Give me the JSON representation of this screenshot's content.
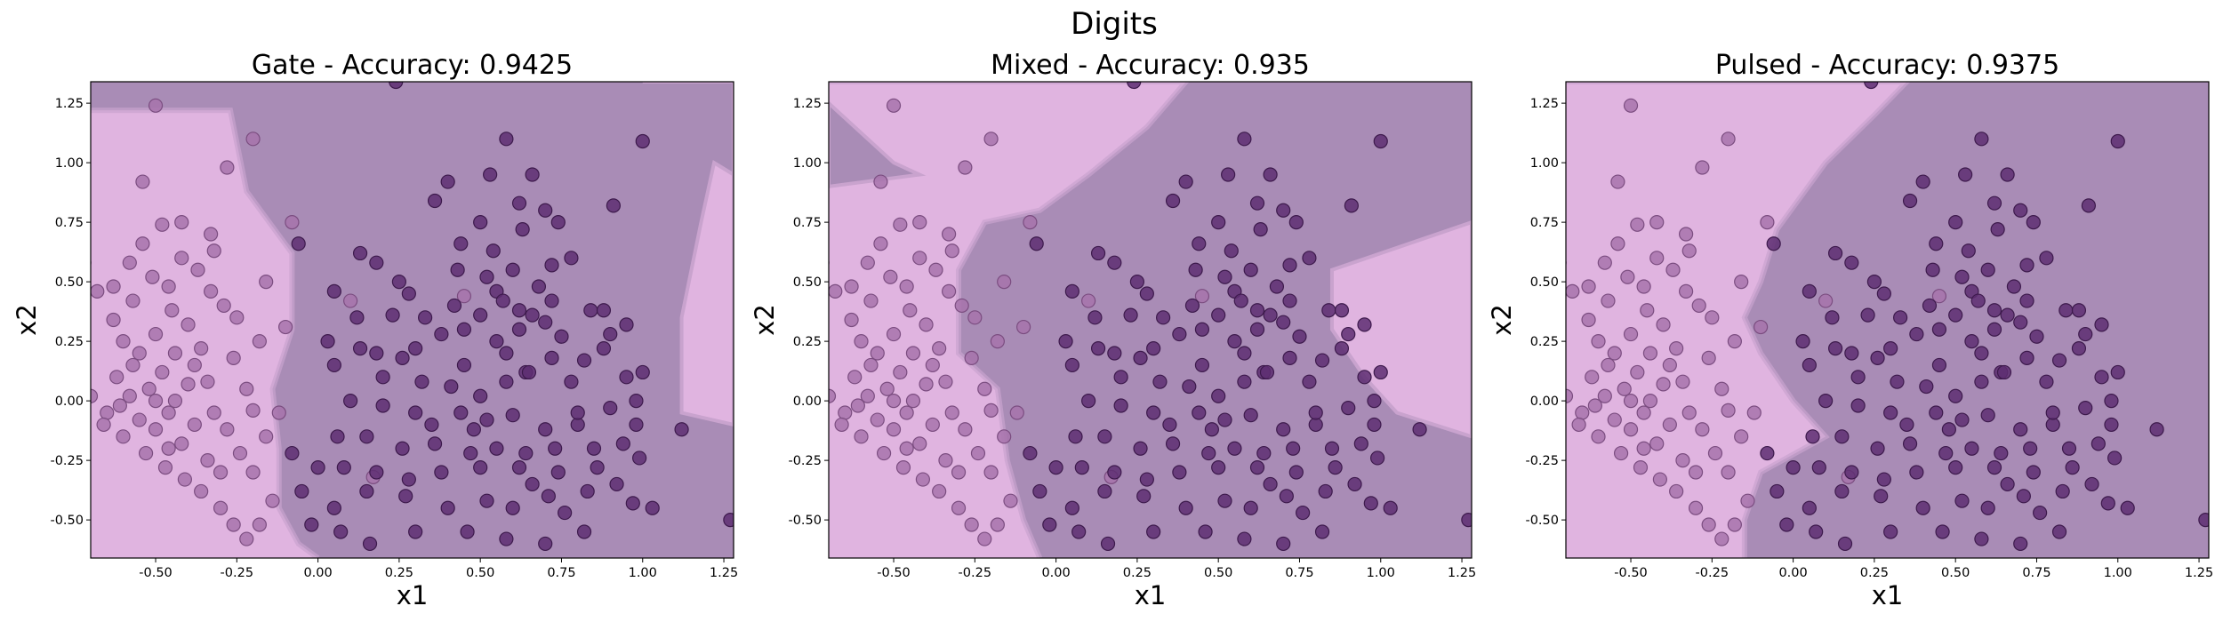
{
  "figure": {
    "title": "Digits"
  },
  "colors": {
    "region_class0": "#e0b4e0",
    "region_class1": "#a98cb6",
    "point_class0": "#a773ab",
    "point_class1": "#5e2e72",
    "point_edge0": "#7b4d80",
    "point_edge1": "#3d1a4c"
  },
  "chart_data": [
    {
      "type": "scatter",
      "title": "Gate - Accuracy: 0.9425",
      "xlabel": "x1",
      "ylabel": "x2",
      "xlim": [
        -0.7,
        1.28
      ],
      "ylim": [
        -0.66,
        1.34
      ],
      "xticks": [
        "-0.50",
        "-0.25",
        "0.00",
        "0.25",
        "0.50",
        "0.75",
        "1.00",
        "1.25"
      ],
      "yticks": [
        "-0.50",
        "-0.25",
        "0.00",
        "0.25",
        "0.50",
        "0.75",
        "1.00",
        "1.25"
      ],
      "decision_boundary": [
        [
          -0.7,
          1.22
        ],
        [
          -0.27,
          1.22
        ],
        [
          -0.22,
          0.88
        ],
        [
          -0.15,
          0.75
        ],
        [
          -0.08,
          0.62
        ],
        [
          -0.08,
          0.3
        ],
        [
          -0.14,
          0.05
        ],
        [
          -0.12,
          -0.2
        ],
        [
          -0.12,
          -0.45
        ],
        [
          -0.06,
          -0.6
        ],
        [
          0.0,
          -0.66
        ]
      ],
      "secondary_region": [
        [
          1.0,
          1.34
        ],
        [
          1.28,
          1.34
        ],
        [
          1.28,
          0.95
        ],
        [
          1.22,
          1.0
        ],
        [
          1.18,
          0.75
        ],
        [
          1.12,
          0.35
        ],
        [
          1.12,
          -0.05
        ],
        [
          1.28,
          -0.1
        ],
        [
          1.28,
          1.34
        ]
      ]
    },
    {
      "type": "scatter",
      "title": "Mixed - Accuracy: 0.935",
      "xlabel": "x1",
      "ylabel": "x2",
      "xlim": [
        -0.7,
        1.28
      ],
      "ylim": [
        -0.66,
        1.34
      ],
      "xticks": [
        "-0.50",
        "-0.25",
        "0.00",
        "0.25",
        "0.50",
        "0.75",
        "1.00",
        "1.25"
      ],
      "yticks": [
        "-0.50",
        "-0.25",
        "0.00",
        "0.25",
        "0.50",
        "0.75",
        "1.00",
        "1.25"
      ],
      "decision_boundary": [
        [
          -0.7,
          1.34
        ],
        [
          0.4,
          1.34
        ],
        [
          0.28,
          1.15
        ],
        [
          0.1,
          0.95
        ],
        [
          -0.05,
          0.8
        ],
        [
          -0.22,
          0.75
        ],
        [
          -0.3,
          0.55
        ],
        [
          -0.3,
          0.2
        ],
        [
          -0.18,
          0.05
        ],
        [
          -0.15,
          -0.25
        ],
        [
          -0.1,
          -0.5
        ],
        [
          -0.05,
          -0.66
        ]
      ],
      "secondary_region": [
        [
          -0.7,
          1.25
        ],
        [
          -0.5,
          1.0
        ],
        [
          -0.42,
          0.95
        ],
        [
          -0.7,
          0.9
        ]
      ],
      "tertiary_region": [
        [
          0.85,
          0.55
        ],
        [
          1.28,
          0.75
        ],
        [
          1.28,
          -0.15
        ],
        [
          1.05,
          -0.05
        ],
        [
          0.95,
          0.1
        ],
        [
          0.85,
          0.3
        ]
      ]
    },
    {
      "type": "scatter",
      "title": "Pulsed - Accuracy: 0.9375",
      "xlabel": "x1",
      "ylabel": "x2",
      "xlim": [
        -0.7,
        1.28
      ],
      "ylim": [
        -0.66,
        1.34
      ],
      "xticks": [
        "-0.50",
        "-0.25",
        "0.00",
        "0.25",
        "0.50",
        "0.75",
        "1.00",
        "1.25"
      ],
      "yticks": [
        "-0.50",
        "-0.25",
        "0.00",
        "0.25",
        "0.50",
        "0.75",
        "1.00",
        "1.25"
      ],
      "decision_boundary": [
        [
          -0.7,
          1.34
        ],
        [
          0.35,
          1.34
        ],
        [
          0.25,
          1.2
        ],
        [
          0.1,
          1.0
        ],
        [
          -0.05,
          0.72
        ],
        [
          -0.1,
          0.5
        ],
        [
          -0.15,
          0.35
        ],
        [
          -0.1,
          0.2
        ],
        [
          0.0,
          0.0
        ],
        [
          0.1,
          -0.15
        ],
        [
          -0.1,
          -0.3
        ],
        [
          -0.15,
          -0.5
        ],
        [
          -0.15,
          -0.66
        ]
      ]
    }
  ],
  "points": {
    "class0": [
      [
        -0.72,
        0.58
      ],
      [
        -0.68,
        0.46
      ],
      [
        -0.63,
        0.34
      ],
      [
        -0.6,
        0.25
      ],
      [
        -0.55,
        0.2
      ],
      [
        -0.5,
        0.28
      ],
      [
        -0.45,
        0.38
      ],
      [
        -0.4,
        0.32
      ],
      [
        -0.36,
        0.22
      ],
      [
        -0.62,
        0.1
      ],
      [
        -0.58,
        0.02
      ],
      [
        -0.52,
        0.05
      ],
      [
        -0.48,
        0.12
      ],
      [
        -0.44,
        0.0
      ],
      [
        -0.4,
        0.07
      ],
      [
        -0.55,
        -0.08
      ],
      [
        -0.5,
        -0.12
      ],
      [
        -0.46,
        -0.05
      ],
      [
        -0.42,
        -0.18
      ],
      [
        -0.38,
        -0.1
      ],
      [
        -0.34,
        -0.25
      ],
      [
        -0.3,
        -0.3
      ],
      [
        -0.6,
        -0.15
      ],
      [
        -0.65,
        -0.05
      ],
      [
        -0.7,
        0.02
      ],
      [
        -0.57,
        0.42
      ],
      [
        -0.51,
        0.52
      ],
      [
        -0.46,
        0.48
      ],
      [
        -0.42,
        0.6
      ],
      [
        -0.37,
        0.55
      ],
      [
        -0.33,
        0.46
      ],
      [
        -0.29,
        0.4
      ],
      [
        -0.25,
        0.35
      ],
      [
        -0.26,
        0.18
      ],
      [
        -0.22,
        0.05
      ],
      [
        -0.2,
        -0.04
      ],
      [
        -0.28,
        -0.12
      ],
      [
        -0.32,
        -0.05
      ],
      [
        -0.36,
        -0.38
      ],
      [
        -0.3,
        -0.45
      ],
      [
        -0.26,
        -0.52
      ],
      [
        -0.22,
        -0.58
      ],
      [
        -0.18,
        -0.52
      ],
      [
        -0.14,
        -0.42
      ],
      [
        -0.2,
        -0.3
      ],
      [
        -0.24,
        -0.22
      ],
      [
        -0.16,
        -0.15
      ],
      [
        -0.12,
        -0.05
      ],
      [
        -0.63,
        0.48
      ],
      [
        -0.58,
        0.58
      ],
      [
        -0.54,
        0.66
      ],
      [
        -0.48,
        0.74
      ],
      [
        -0.42,
        0.75
      ],
      [
        -0.33,
        0.7
      ],
      [
        -0.32,
        0.63
      ],
      [
        -0.5,
        1.24
      ],
      [
        -0.54,
        0.92
      ],
      [
        -0.2,
        1.1
      ],
      [
        -0.28,
        0.98
      ],
      [
        -0.16,
        0.5
      ],
      [
        -0.18,
        0.25
      ],
      [
        -0.1,
        0.31
      ],
      [
        -0.53,
        -0.22
      ],
      [
        -0.47,
        -0.28
      ],
      [
        -0.41,
        -0.33
      ],
      [
        -0.57,
        0.15
      ],
      [
        -0.44,
        0.2
      ],
      [
        0.1,
        0.42
      ],
      [
        0.17,
        -0.32
      ],
      [
        0.45,
        0.44
      ],
      [
        -0.08,
        0.75
      ],
      [
        -0.66,
        -0.1
      ],
      [
        -0.61,
        -0.02
      ],
      [
        -0.38,
        0.15
      ],
      [
        -0.34,
        0.08
      ],
      [
        -0.46,
        -0.2
      ],
      [
        -0.5,
        0.0
      ]
    ],
    "class1": [
      [
        0.24,
        1.34
      ],
      [
        0.58,
        1.1
      ],
      [
        1.0,
        1.09
      ],
      [
        0.4,
        0.92
      ],
      [
        0.66,
        0.95
      ],
      [
        0.53,
        0.95
      ],
      [
        0.36,
        0.84
      ],
      [
        0.62,
        0.83
      ],
      [
        0.7,
        0.8
      ],
      [
        0.74,
        0.75
      ],
      [
        0.91,
        0.82
      ],
      [
        0.5,
        0.75
      ],
      [
        0.63,
        0.72
      ],
      [
        0.44,
        0.66
      ],
      [
        0.54,
        0.63
      ],
      [
        -0.06,
        0.66
      ],
      [
        0.13,
        0.62
      ],
      [
        0.18,
        0.58
      ],
      [
        0.43,
        0.55
      ],
      [
        0.6,
        0.55
      ],
      [
        0.72,
        0.57
      ],
      [
        0.78,
        0.6
      ],
      [
        0.05,
        0.46
      ],
      [
        0.28,
        0.45
      ],
      [
        0.55,
        0.46
      ],
      [
        0.57,
        0.42
      ],
      [
        0.62,
        0.38
      ],
      [
        0.66,
        0.36
      ],
      [
        0.72,
        0.42
      ],
      [
        0.84,
        0.38
      ],
      [
        0.95,
        0.32
      ],
      [
        0.23,
        0.36
      ],
      [
        0.33,
        0.35
      ],
      [
        0.38,
        0.28
      ],
      [
        0.45,
        0.3
      ],
      [
        0.5,
        0.36
      ],
      [
        0.55,
        0.25
      ],
      [
        0.62,
        0.3
      ],
      [
        0.7,
        0.33
      ],
      [
        0.75,
        0.27
      ],
      [
        0.9,
        0.28
      ],
      [
        0.13,
        0.22
      ],
      [
        0.18,
        0.2
      ],
      [
        0.26,
        0.18
      ],
      [
        0.45,
        0.15
      ],
      [
        0.58,
        0.2
      ],
      [
        0.64,
        0.12
      ],
      [
        0.72,
        0.18
      ],
      [
        0.82,
        0.17
      ],
      [
        0.88,
        0.22
      ],
      [
        0.05,
        0.15
      ],
      [
        0.2,
        0.1
      ],
      [
        0.32,
        0.08
      ],
      [
        0.41,
        0.06
      ],
      [
        0.5,
        0.02
      ],
      [
        0.58,
        0.08
      ],
      [
        0.65,
        0.12
      ],
      [
        0.78,
        0.08
      ],
      [
        0.95,
        0.1
      ],
      [
        1.0,
        0.12
      ],
      [
        0.1,
        0.0
      ],
      [
        0.2,
        -0.02
      ],
      [
        0.3,
        -0.05
      ],
      [
        0.44,
        -0.05
      ],
      [
        0.52,
        -0.08
      ],
      [
        0.6,
        -0.06
      ],
      [
        0.7,
        -0.12
      ],
      [
        0.8,
        -0.1
      ],
      [
        0.9,
        -0.03
      ],
      [
        0.98,
        0.0
      ],
      [
        1.12,
        -0.12
      ],
      [
        0.06,
        -0.15
      ],
      [
        0.15,
        -0.15
      ],
      [
        0.26,
        -0.2
      ],
      [
        0.36,
        -0.18
      ],
      [
        0.47,
        -0.22
      ],
      [
        0.55,
        -0.2
      ],
      [
        0.64,
        -0.22
      ],
      [
        0.73,
        -0.2
      ],
      [
        0.85,
        -0.2
      ],
      [
        0.94,
        -0.18
      ],
      [
        -0.08,
        -0.22
      ],
      [
        0.0,
        -0.28
      ],
      [
        0.08,
        -0.28
      ],
      [
        0.18,
        -0.3
      ],
      [
        0.28,
        -0.33
      ],
      [
        0.38,
        -0.3
      ],
      [
        0.5,
        -0.28
      ],
      [
        0.62,
        -0.28
      ],
      [
        0.74,
        -0.3
      ],
      [
        0.86,
        -0.28
      ],
      [
        0.99,
        -0.24
      ],
      [
        -0.05,
        -0.38
      ],
      [
        0.05,
        -0.45
      ],
      [
        0.15,
        -0.38
      ],
      [
        0.27,
        -0.4
      ],
      [
        0.4,
        -0.45
      ],
      [
        0.52,
        -0.42
      ],
      [
        0.6,
        -0.45
      ],
      [
        0.71,
        -0.4
      ],
      [
        0.83,
        -0.38
      ],
      [
        0.97,
        -0.43
      ],
      [
        1.03,
        -0.45
      ],
      [
        -0.02,
        -0.52
      ],
      [
        0.07,
        -0.55
      ],
      [
        0.16,
        -0.6
      ],
      [
        0.3,
        -0.55
      ],
      [
        0.46,
        -0.55
      ],
      [
        0.58,
        -0.58
      ],
      [
        0.7,
        -0.6
      ],
      [
        0.82,
        -0.55
      ],
      [
        1.27,
        -0.5
      ],
      [
        0.35,
        -0.1
      ],
      [
        0.42,
        0.4
      ],
      [
        0.68,
        0.48
      ],
      [
        0.25,
        0.5
      ],
      [
        0.3,
        0.22
      ],
      [
        0.52,
        0.52
      ],
      [
        0.8,
        -0.05
      ],
      [
        0.88,
        0.38
      ],
      [
        0.98,
        -0.1
      ],
      [
        0.12,
        0.35
      ],
      [
        0.03,
        0.25
      ],
      [
        0.48,
        -0.12
      ],
      [
        0.66,
        -0.35
      ],
      [
        0.76,
        -0.47
      ],
      [
        0.92,
        -0.35
      ]
    ]
  }
}
